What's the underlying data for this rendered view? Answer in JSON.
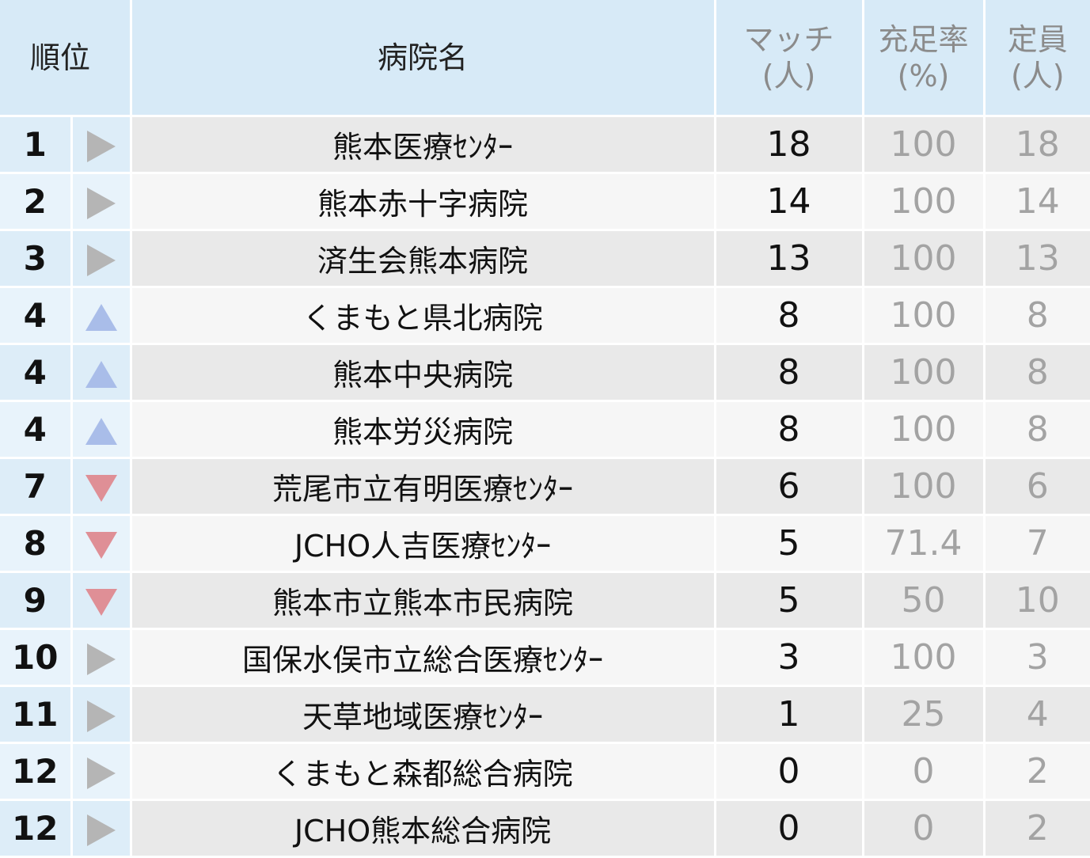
{
  "header": {
    "rank": "順位",
    "name": "病院名",
    "match": "マッチ",
    "match_unit": "(人)",
    "rate": "充足率",
    "rate_unit": "(%)",
    "capacity": "定員",
    "capacity_unit": "(人)"
  },
  "trend_colors": {
    "flat": "#b5b5b5",
    "up": "#a9bde9",
    "down": "#df8f96"
  },
  "rows": [
    {
      "rank": "1",
      "trend": "flat",
      "name": "熊本医療ｾﾝﾀｰ",
      "match": "18",
      "rate": "100",
      "capacity": "18"
    },
    {
      "rank": "2",
      "trend": "flat",
      "name": "熊本赤十字病院",
      "match": "14",
      "rate": "100",
      "capacity": "14"
    },
    {
      "rank": "3",
      "trend": "flat",
      "name": "済生会熊本病院",
      "match": "13",
      "rate": "100",
      "capacity": "13"
    },
    {
      "rank": "4",
      "trend": "up",
      "name": "くまもと県北病院",
      "match": "8",
      "rate": "100",
      "capacity": "8"
    },
    {
      "rank": "4",
      "trend": "up",
      "name": "熊本中央病院",
      "match": "8",
      "rate": "100",
      "capacity": "8"
    },
    {
      "rank": "4",
      "trend": "up",
      "name": "熊本労災病院",
      "match": "8",
      "rate": "100",
      "capacity": "8"
    },
    {
      "rank": "7",
      "trend": "down",
      "name": "荒尾市立有明医療ｾﾝﾀｰ",
      "match": "6",
      "rate": "100",
      "capacity": "6"
    },
    {
      "rank": "8",
      "trend": "down",
      "name": "JCHO人吉医療ｾﾝﾀｰ",
      "match": "5",
      "rate": "71.4",
      "capacity": "7"
    },
    {
      "rank": "9",
      "trend": "down",
      "name": "熊本市立熊本市民病院",
      "match": "5",
      "rate": "50",
      "capacity": "10"
    },
    {
      "rank": "10",
      "trend": "flat",
      "name": "国保水俣市立総合医療ｾﾝﾀｰ",
      "match": "3",
      "rate": "100",
      "capacity": "3"
    },
    {
      "rank": "11",
      "trend": "flat",
      "name": "天草地域医療ｾﾝﾀｰ",
      "match": "1",
      "rate": "25",
      "capacity": "4"
    },
    {
      "rank": "12",
      "trend": "flat",
      "name": "くまもと森都総合病院",
      "match": "0",
      "rate": "0",
      "capacity": "2"
    },
    {
      "rank": "12",
      "trend": "flat",
      "name": "JCHO熊本総合病院",
      "match": "0",
      "rate": "0",
      "capacity": "2"
    }
  ]
}
